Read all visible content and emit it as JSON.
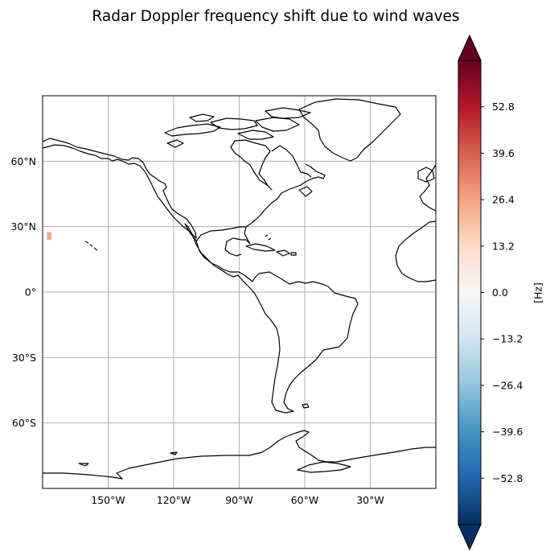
{
  "title": "Radar Doppler frequency shift due to wind waves",
  "map": {
    "lon_range": [
      -180,
      0
    ],
    "lat_range": [
      -90,
      90
    ],
    "grid": true,
    "coastline_color": "#000000",
    "x_ticks": [
      {
        "value": -150,
        "label": "150°W"
      },
      {
        "value": -120,
        "label": "120°W"
      },
      {
        "value": -90,
        "label": "90°W"
      },
      {
        "value": -60,
        "label": "60°W"
      },
      {
        "value": -30,
        "label": "30°W"
      }
    ],
    "y_ticks": [
      {
        "value": 60,
        "label": "60°N"
      },
      {
        "value": 30,
        "label": "30°N"
      },
      {
        "value": 0,
        "label": "0°"
      },
      {
        "value": -30,
        "label": "30°S"
      },
      {
        "value": -60,
        "label": "60°S"
      }
    ],
    "data_patch": {
      "lon": [
        -178,
        -176
      ],
      "lat": [
        24,
        27.5
      ],
      "value": 26.0
    }
  },
  "colorbar": {
    "label": "[Hz]",
    "vmin": -66,
    "vmax": 66,
    "extend": "both",
    "colormap": "RdBu_r",
    "ticks": [
      {
        "value": 52.8,
        "label": "52.8"
      },
      {
        "value": 39.6,
        "label": "39.6"
      },
      {
        "value": 26.4,
        "label": "26.4"
      },
      {
        "value": 13.2,
        "label": "13.2"
      },
      {
        "value": 0,
        "label": "0.0"
      },
      {
        "value": -13.2,
        "label": "−13.2"
      },
      {
        "value": -26.4,
        "label": "−26.4"
      },
      {
        "value": -39.6,
        "label": "−39.6"
      },
      {
        "value": -52.8,
        "label": "−52.8"
      }
    ],
    "colors": [
      "#053061",
      "#2166ac",
      "#4393c3",
      "#92c5de",
      "#d1e5f0",
      "#f7f7f7",
      "#fddbc7",
      "#f4a582",
      "#d6604d",
      "#b2182b",
      "#67001f"
    ]
  }
}
